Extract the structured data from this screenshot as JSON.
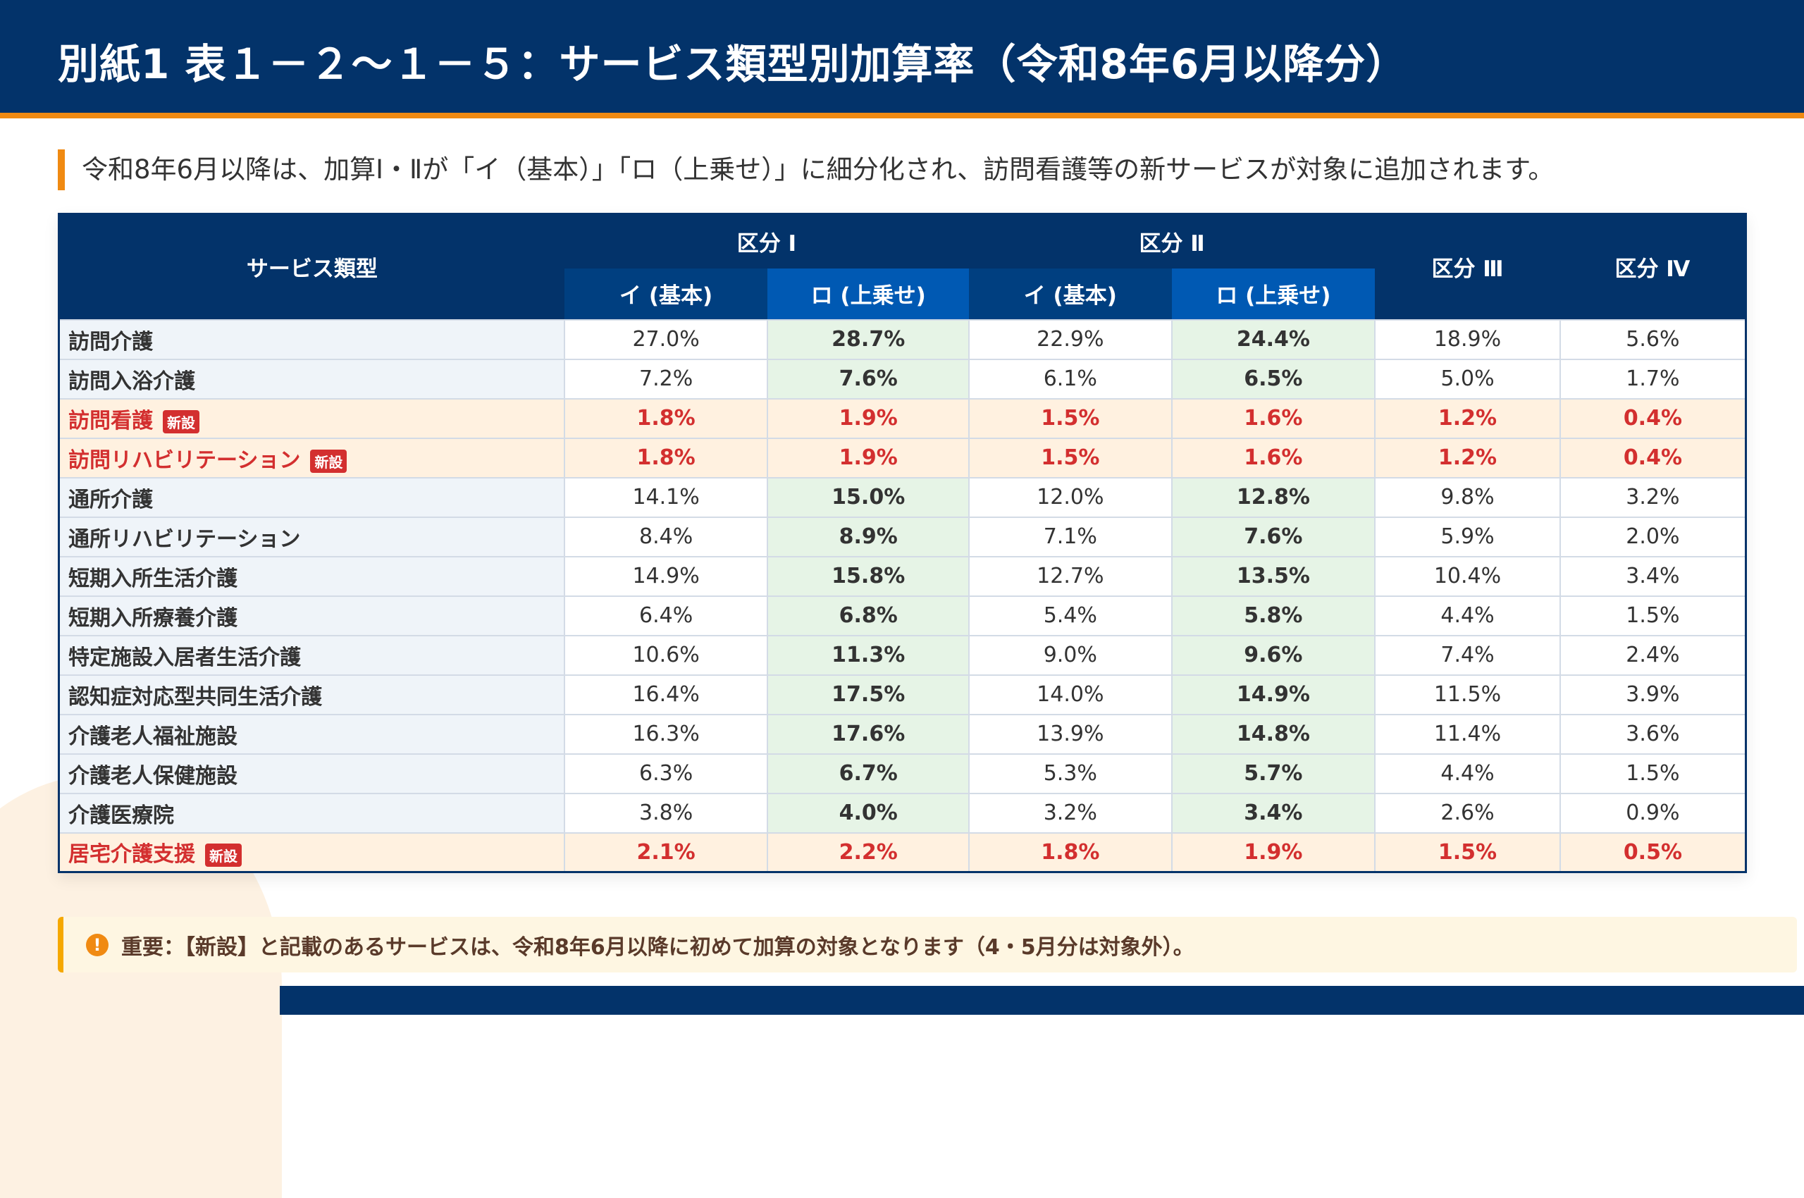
{
  "title": "別紙1 表１－２～１－５：サービス類型別加算率（令和8年6月以降分）",
  "subtitle": "令和8年6月以降は、加算Ⅰ・Ⅱが「イ（基本）」「ロ（上乗せ）」に細分化され、訪問看護等の新サービスが対象に追加されます。",
  "table": {
    "headers": {
      "service": "サービス類型",
      "k1": "区分 Ⅰ",
      "k2": "区分 Ⅱ",
      "k3": "区分 Ⅲ",
      "k4": "区分 Ⅳ",
      "i": "イ (基本)",
      "ro": "ロ (上乗せ)"
    },
    "new_badge": "新設",
    "rows": [
      {
        "name": "訪問介護",
        "new": false,
        "v": [
          "27.0%",
          "28.7%",
          "22.9%",
          "24.4%",
          "18.9%",
          "5.6%"
        ]
      },
      {
        "name": "訪問入浴介護",
        "new": false,
        "v": [
          "7.2%",
          "7.6%",
          "6.1%",
          "6.5%",
          "5.0%",
          "1.7%"
        ]
      },
      {
        "name": "訪問看護",
        "new": true,
        "v": [
          "1.8%",
          "1.9%",
          "1.5%",
          "1.6%",
          "1.2%",
          "0.4%"
        ]
      },
      {
        "name": "訪問リハビリテーション",
        "new": true,
        "v": [
          "1.8%",
          "1.9%",
          "1.5%",
          "1.6%",
          "1.2%",
          "0.4%"
        ]
      },
      {
        "name": "通所介護",
        "new": false,
        "v": [
          "14.1%",
          "15.0%",
          "12.0%",
          "12.8%",
          "9.8%",
          "3.2%"
        ]
      },
      {
        "name": "通所リハビリテーション",
        "new": false,
        "v": [
          "8.4%",
          "8.9%",
          "7.1%",
          "7.6%",
          "5.9%",
          "2.0%"
        ]
      },
      {
        "name": "短期入所生活介護",
        "new": false,
        "v": [
          "14.9%",
          "15.8%",
          "12.7%",
          "13.5%",
          "10.4%",
          "3.4%"
        ]
      },
      {
        "name": "短期入所療養介護",
        "new": false,
        "v": [
          "6.4%",
          "6.8%",
          "5.4%",
          "5.8%",
          "4.4%",
          "1.5%"
        ]
      },
      {
        "name": "特定施設入居者生活介護",
        "new": false,
        "v": [
          "10.6%",
          "11.3%",
          "9.0%",
          "9.6%",
          "7.4%",
          "2.4%"
        ]
      },
      {
        "name": "認知症対応型共同生活介護",
        "new": false,
        "v": [
          "16.4%",
          "17.5%",
          "14.0%",
          "14.9%",
          "11.5%",
          "3.9%"
        ]
      },
      {
        "name": "介護老人福祉施設",
        "new": false,
        "v": [
          "16.3%",
          "17.6%",
          "13.9%",
          "14.8%",
          "11.4%",
          "3.6%"
        ]
      },
      {
        "name": "介護老人保健施設",
        "new": false,
        "v": [
          "6.3%",
          "6.7%",
          "5.3%",
          "5.7%",
          "4.4%",
          "1.5%"
        ]
      },
      {
        "name": "介護医療院",
        "new": false,
        "v": [
          "3.8%",
          "4.0%",
          "3.2%",
          "3.4%",
          "2.6%",
          "0.9%"
        ]
      },
      {
        "name": "居宅介護支援",
        "new": true,
        "v": [
          "2.1%",
          "2.2%",
          "1.8%",
          "1.9%",
          "1.5%",
          "0.5%"
        ]
      }
    ]
  },
  "note": {
    "icon": "exclamation-circle-icon",
    "text": "重要：【新設】と記載のあるサービスは、令和8年6月以降に初めて加算の対象となります（4・5月分は対象外）。"
  },
  "colors": {
    "navy": "#03336a",
    "accent": "#f08a12",
    "new_red": "#d32f2f",
    "ro_green": "#e6f4e6",
    "new_row": "#fff1e0"
  }
}
